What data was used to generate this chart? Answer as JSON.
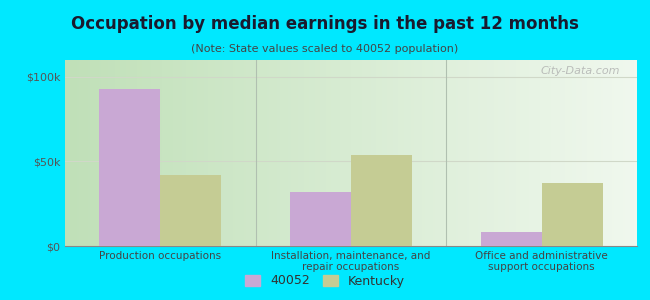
{
  "title": "Occupation by median earnings in the past 12 months",
  "subtitle": "(Note: State values scaled to 40052 population)",
  "categories": [
    "Production occupations",
    "Installation, maintenance, and\nrepair occupations",
    "Office and administrative\nsupport occupations"
  ],
  "values_40052": [
    93000,
    32000,
    8000
  ],
  "values_kentucky": [
    42000,
    54000,
    37000
  ],
  "color_40052": "#c9a8d4",
  "color_kentucky": "#c5cc94",
  "ylim": [
    0,
    110000
  ],
  "yticks": [
    0,
    50000,
    100000
  ],
  "ytick_labels": [
    "$0",
    "$50k",
    "$100k"
  ],
  "legend_labels": [
    "40052",
    "Kentucky"
  ],
  "plot_bg_left": "#c8e8c0",
  "plot_bg_right": "#f0f8f0",
  "outer_background": "#00e8ff",
  "watermark": "City-Data.com",
  "bar_width": 0.32,
  "figsize": [
    6.5,
    3.0
  ],
  "dpi": 100
}
